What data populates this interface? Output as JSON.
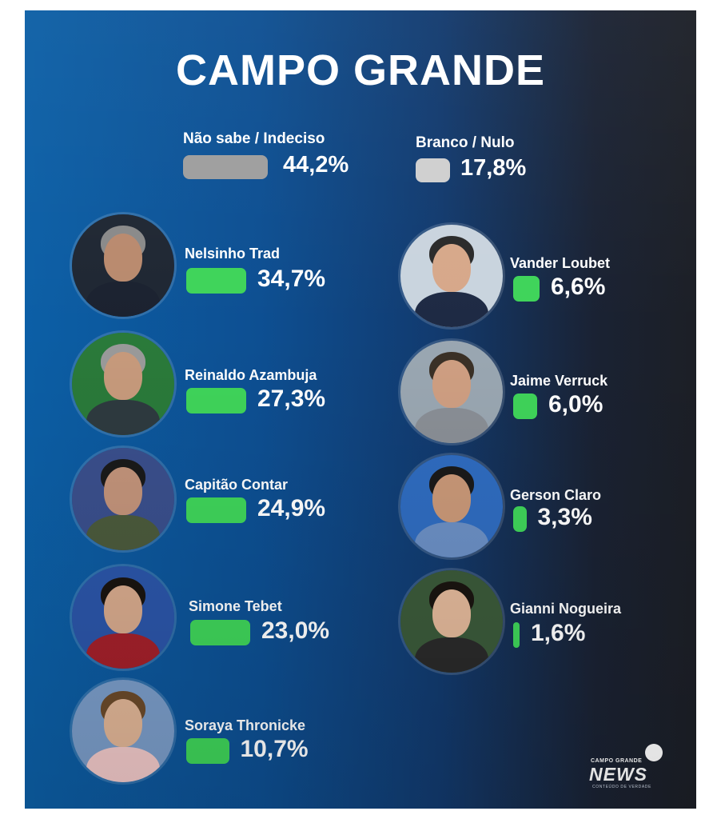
{
  "chart_data": {
    "type": "bar",
    "title": "CAMPO GRANDE",
    "bar_color": "#3fd45a",
    "other_color_undecided": "#9e9e9e",
    "other_color_blank": "#cfcfcf",
    "others": [
      {
        "name": "Não sabe / Indeciso",
        "value": 44.2,
        "label": "44,2%"
      },
      {
        "name": "Branco / Nulo",
        "value": 17.8,
        "label": "17,8%"
      }
    ],
    "candidates": [
      {
        "name": "Nelsinho Trad",
        "value": 34.7,
        "label": "34,7%"
      },
      {
        "name": "Reinaldo Azambuja",
        "value": 27.3,
        "label": "27,3%"
      },
      {
        "name": "Capitão Contar",
        "value": 24.9,
        "label": "24,9%"
      },
      {
        "name": "Simone Tebet",
        "value": 23.0,
        "label": "23,0%"
      },
      {
        "name": "Soraya Thronicke",
        "value": 10.7,
        "label": "10,7%"
      },
      {
        "name": "Vander Loubet",
        "value": 6.6,
        "label": "6,6%"
      },
      {
        "name": "Jaime Verruck",
        "value": 6.0,
        "label": "6,0%"
      },
      {
        "name": "Gerson Claro",
        "value": 3.3,
        "label": "3,3%"
      },
      {
        "name": "Gianni Nogueira",
        "value": 1.6,
        "label": "1,6%"
      }
    ]
  },
  "logo": {
    "top_text": "CAMPO GRANDE",
    "main_text": "NEWS",
    "tagline": "CONTEÚDO DE VERDADE"
  }
}
